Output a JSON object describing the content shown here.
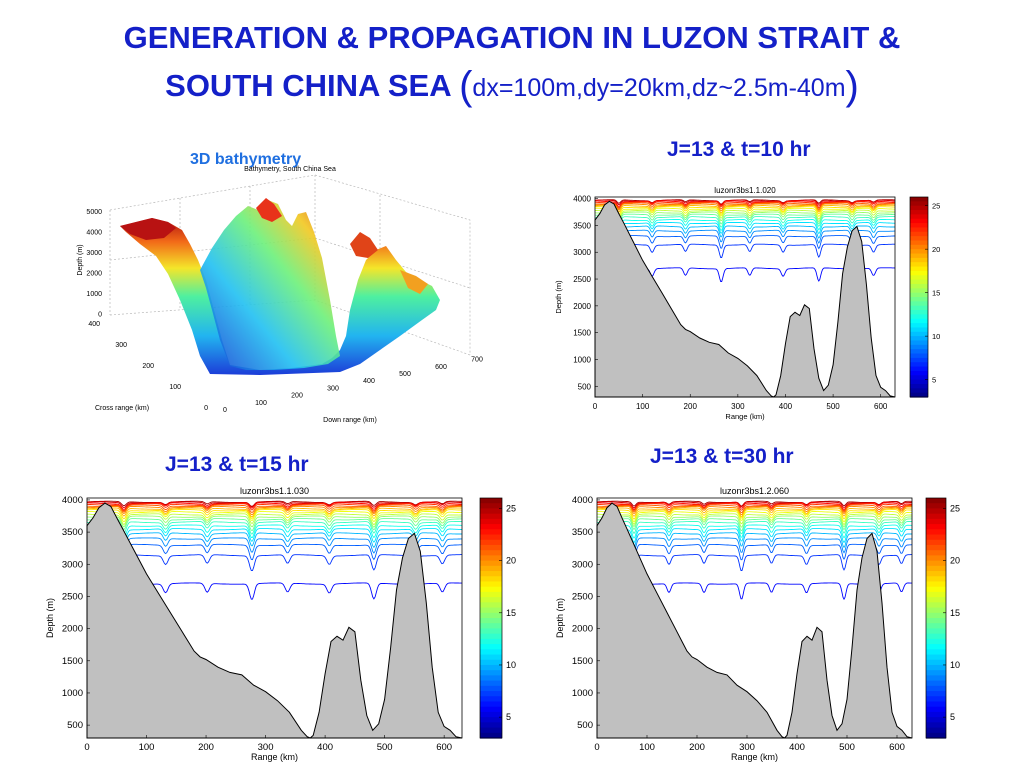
{
  "slide": {
    "title_line1": "GENERATION & PROPAGATION IN LUZON STRAIT &",
    "title_line2": "SOUTH CHINA SEA",
    "title_params": "dx=100m,dy=20km,dz~2.5m-40m"
  },
  "bathymetry_panel": {
    "heading": "3D bathymetry",
    "plot_title": "Bathymetry, South China Sea",
    "zlabel": "Depth (m)",
    "xlabel": "Down range (km)",
    "ylabel": "Cross range (km)",
    "z_ticks": [
      "5000",
      "4000",
      "3000",
      "2000",
      "1000",
      "0"
    ],
    "x_ticks": [
      "0",
      "100",
      "200",
      "300",
      "400",
      "500",
      "600",
      "700"
    ],
    "y_ticks": [
      "400",
      "300",
      "200",
      "100",
      "0"
    ]
  },
  "chart_data": [
    {
      "type": "area",
      "heading": "J=13 & t=10 hr",
      "title": "luzonr3bs1.1.020",
      "xlabel": "Range (km)",
      "ylabel": "Depth (m)",
      "xlim": [
        0,
        630
      ],
      "ylim": [
        300,
        4030
      ],
      "x_ticks": [
        0,
        100,
        200,
        300,
        400,
        500,
        600
      ],
      "y_ticks": [
        500,
        1000,
        1500,
        2000,
        2500,
        3000,
        3500,
        4000
      ],
      "colorbar": {
        "ticks": [
          5,
          10,
          15,
          20,
          25
        ],
        "range": [
          3,
          26
        ]
      },
      "bathymetry": {
        "x": [
          0,
          10,
          20,
          30,
          40,
          50,
          60,
          80,
          100,
          120,
          140,
          160,
          170,
          180,
          190,
          200,
          220,
          240,
          260,
          280,
          300,
          320,
          340,
          360,
          370,
          375,
          380,
          390,
          400,
          410,
          420,
          430,
          440,
          450,
          460,
          470,
          480,
          490,
          500,
          510,
          520,
          530,
          540,
          550,
          560,
          570,
          580,
          590,
          600,
          610,
          620,
          630
        ],
        "y": [
          3600,
          3720,
          3880,
          3950,
          3900,
          3720,
          3550,
          3200,
          2850,
          2550,
          2250,
          1950,
          1800,
          1650,
          1560,
          1520,
          1400,
          1320,
          1280,
          1120,
          1020,
          880,
          700,
          420,
          320,
          300,
          340,
          700,
          1300,
          1800,
          1880,
          1820,
          2020,
          1950,
          1200,
          650,
          420,
          520,
          900,
          1700,
          2600,
          3100,
          3400,
          3480,
          3200,
          2400,
          1400,
          700,
          480,
          420,
          320,
          300
        ]
      },
      "isotherms": [
        {
          "temp": 25,
          "depth": 3970
        },
        {
          "temp": 24,
          "depth": 3960
        },
        {
          "temp": 23,
          "depth": 3945
        },
        {
          "temp": 22,
          "depth": 3930
        },
        {
          "temp": 21,
          "depth": 3910
        },
        {
          "temp": 20,
          "depth": 3890
        },
        {
          "temp": 19,
          "depth": 3865
        },
        {
          "temp": 18,
          "depth": 3840
        },
        {
          "temp": 17,
          "depth": 3810
        },
        {
          "temp": 16,
          "depth": 3775
        },
        {
          "temp": 15,
          "depth": 3740
        },
        {
          "temp": 14,
          "depth": 3700
        },
        {
          "temp": 13,
          "depth": 3655
        },
        {
          "temp": 12,
          "depth": 3600
        },
        {
          "temp": 11,
          "depth": 3545
        },
        {
          "temp": 10,
          "depth": 3480
        },
        {
          "temp": 9,
          "depth": 3400
        },
        {
          "temp": 8,
          "depth": 3300
        },
        {
          "temp": 7,
          "depth": 3140
        },
        {
          "temp": 6,
          "depth": 2700
        }
      ]
    },
    {
      "type": "area",
      "heading": "J=13 & t=15 hr",
      "title": "luzonr3bs1.1.030",
      "xlabel": "Range (km)",
      "ylabel": "Depth (m)",
      "xlim": [
        0,
        630
      ],
      "ylim": [
        300,
        4030
      ],
      "x_ticks": [
        0,
        100,
        200,
        300,
        400,
        500,
        600
      ],
      "y_ticks": [
        500,
        1000,
        1500,
        2000,
        2500,
        3000,
        3500,
        4000
      ],
      "colorbar": {
        "ticks": [
          5,
          10,
          15,
          20,
          25
        ],
        "range": [
          3,
          26
        ]
      },
      "bathymetry": {
        "x": [
          0,
          10,
          20,
          30,
          40,
          50,
          60,
          80,
          100,
          120,
          140,
          160,
          170,
          180,
          190,
          200,
          220,
          240,
          260,
          280,
          300,
          320,
          340,
          360,
          370,
          375,
          380,
          390,
          400,
          410,
          420,
          430,
          440,
          450,
          460,
          470,
          480,
          490,
          500,
          510,
          520,
          530,
          540,
          550,
          560,
          570,
          580,
          590,
          600,
          610,
          620,
          630
        ],
        "y": [
          3600,
          3720,
          3880,
          3950,
          3900,
          3720,
          3550,
          3200,
          2850,
          2550,
          2250,
          1950,
          1800,
          1650,
          1560,
          1520,
          1400,
          1320,
          1280,
          1120,
          1020,
          880,
          700,
          420,
          320,
          300,
          340,
          700,
          1300,
          1800,
          1880,
          1820,
          2020,
          1950,
          1200,
          650,
          420,
          520,
          900,
          1700,
          2600,
          3100,
          3400,
          3480,
          3200,
          2400,
          1400,
          700,
          480,
          420,
          320,
          300
        ]
      },
      "isotherms": [
        {
          "temp": 25,
          "depth": 3970
        },
        {
          "temp": 24,
          "depth": 3960
        },
        {
          "temp": 23,
          "depth": 3945
        },
        {
          "temp": 22,
          "depth": 3930
        },
        {
          "temp": 21,
          "depth": 3910
        },
        {
          "temp": 20,
          "depth": 3890
        },
        {
          "temp": 19,
          "depth": 3865
        },
        {
          "temp": 18,
          "depth": 3840
        },
        {
          "temp": 17,
          "depth": 3810
        },
        {
          "temp": 16,
          "depth": 3775
        },
        {
          "temp": 15,
          "depth": 3740
        },
        {
          "temp": 14,
          "depth": 3700
        },
        {
          "temp": 13,
          "depth": 3655
        },
        {
          "temp": 12,
          "depth": 3600
        },
        {
          "temp": 11,
          "depth": 3545
        },
        {
          "temp": 10,
          "depth": 3480
        },
        {
          "temp": 9,
          "depth": 3400
        },
        {
          "temp": 8,
          "depth": 3300
        },
        {
          "temp": 7,
          "depth": 3140
        },
        {
          "temp": 6,
          "depth": 2700
        }
      ]
    },
    {
      "type": "area",
      "heading": "J=13 & t=30 hr",
      "title": "luzonr3bs1.2.060",
      "xlabel": "Range (km)",
      "ylabel": "Depth (m)",
      "xlim": [
        0,
        630
      ],
      "ylim": [
        300,
        4030
      ],
      "x_ticks": [
        0,
        100,
        200,
        300,
        400,
        500,
        600
      ],
      "y_ticks": [
        500,
        1000,
        1500,
        2000,
        2500,
        3000,
        3500,
        4000
      ],
      "colorbar": {
        "ticks": [
          5,
          10,
          15,
          20,
          25
        ],
        "range": [
          3,
          26
        ]
      },
      "bathymetry": {
        "x": [
          0,
          10,
          20,
          30,
          40,
          50,
          60,
          80,
          100,
          120,
          140,
          160,
          170,
          180,
          190,
          200,
          220,
          240,
          260,
          280,
          300,
          320,
          340,
          360,
          370,
          375,
          380,
          390,
          400,
          410,
          420,
          430,
          440,
          450,
          460,
          470,
          480,
          490,
          500,
          510,
          520,
          530,
          540,
          550,
          560,
          570,
          580,
          590,
          600,
          610,
          620,
          630
        ],
        "y": [
          3600,
          3720,
          3880,
          3950,
          3900,
          3720,
          3550,
          3200,
          2850,
          2550,
          2250,
          1950,
          1800,
          1650,
          1560,
          1520,
          1400,
          1320,
          1280,
          1120,
          1020,
          880,
          700,
          420,
          320,
          300,
          340,
          700,
          1300,
          1800,
          1880,
          1820,
          2020,
          1950,
          1200,
          650,
          420,
          520,
          900,
          1700,
          2600,
          3100,
          3400,
          3480,
          3200,
          2400,
          1400,
          700,
          480,
          420,
          320,
          300
        ]
      },
      "isotherms": [
        {
          "temp": 25,
          "depth": 3970
        },
        {
          "temp": 24,
          "depth": 3960
        },
        {
          "temp": 23,
          "depth": 3945
        },
        {
          "temp": 22,
          "depth": 3930
        },
        {
          "temp": 21,
          "depth": 3910
        },
        {
          "temp": 20,
          "depth": 3890
        },
        {
          "temp": 19,
          "depth": 3865
        },
        {
          "temp": 18,
          "depth": 3840
        },
        {
          "temp": 17,
          "depth": 3810
        },
        {
          "temp": 16,
          "depth": 3775
        },
        {
          "temp": 15,
          "depth": 3740
        },
        {
          "temp": 14,
          "depth": 3700
        },
        {
          "temp": 13,
          "depth": 3655
        },
        {
          "temp": 12,
          "depth": 3600
        },
        {
          "temp": 11,
          "depth": 3545
        },
        {
          "temp": 10,
          "depth": 3480
        },
        {
          "temp": 9,
          "depth": 3400
        },
        {
          "temp": 8,
          "depth": 3300
        },
        {
          "temp": 7,
          "depth": 3140
        },
        {
          "temp": 6,
          "depth": 2700
        }
      ]
    }
  ]
}
